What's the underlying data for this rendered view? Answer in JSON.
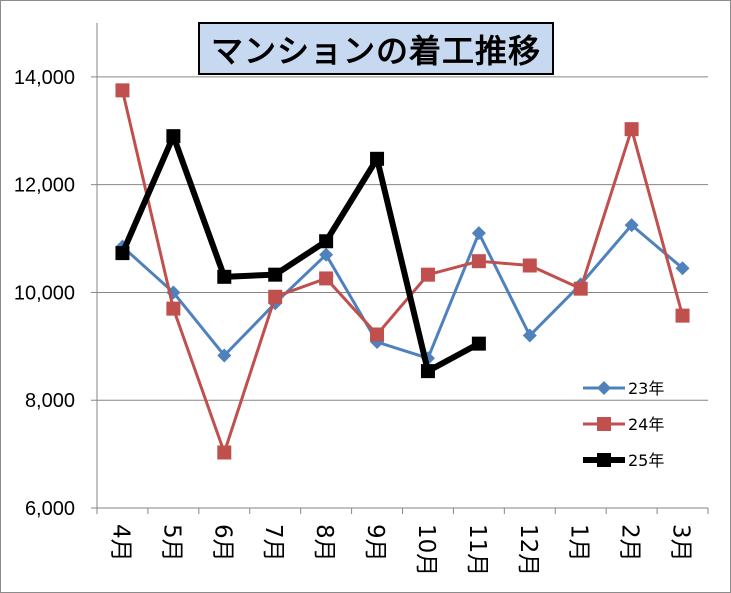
{
  "chart_data": {
    "type": "line",
    "title": "マンションの着工推移",
    "categories": [
      "4月",
      "5月",
      "6月",
      "7月",
      "8月",
      "9月",
      "10月",
      "11月",
      "12月",
      "1月",
      "2月",
      "3月"
    ],
    "ylim": [
      6000,
      15000
    ],
    "yticks": [
      "6,000",
      "8,000",
      "10,000",
      "12,000",
      "14,000"
    ],
    "ytick_values": [
      6000,
      8000,
      10000,
      12000,
      14000
    ],
    "grid": true,
    "legend_position": "right",
    "series": [
      {
        "name": "23年",
        "color": "#4f81bd",
        "marker": "diamond",
        "values": [
          10850,
          10000,
          8830,
          9800,
          10700,
          9080,
          8780,
          11100,
          9200,
          10150,
          11250,
          10450
        ]
      },
      {
        "name": "24年",
        "color": "#c0504d",
        "marker": "square",
        "values": [
          13750,
          9700,
          7030,
          9920,
          10260,
          9220,
          10330,
          10580,
          10500,
          10070,
          13030,
          9570
        ]
      },
      {
        "name": "25年",
        "color": "#000000",
        "marker": "square",
        "values": [
          10730,
          12900,
          10290,
          10330,
          10950,
          12480,
          8540,
          9050,
          null,
          null,
          null,
          null
        ]
      }
    ]
  }
}
